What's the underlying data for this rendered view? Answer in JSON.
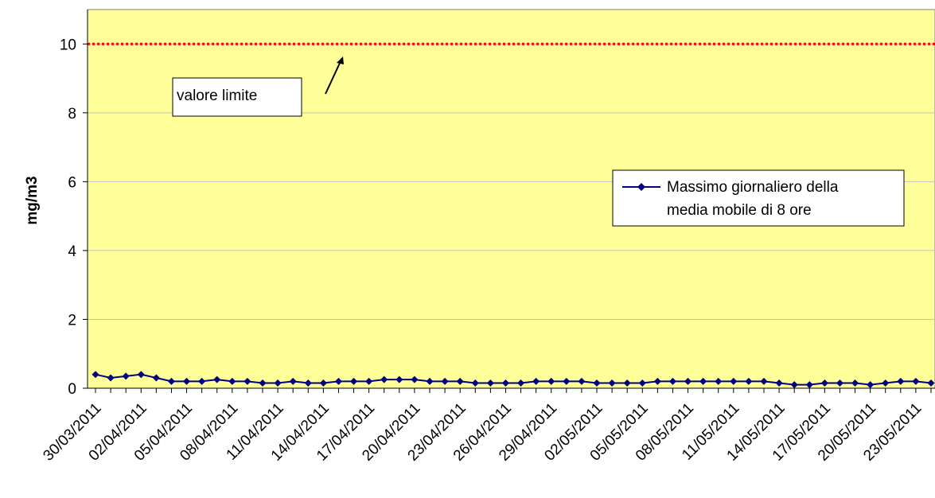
{
  "chart_data": {
    "type": "line",
    "ylabel": "mg/m3",
    "xlabel": "",
    "ylim": [
      0,
      11
    ],
    "yticks": [
      0,
      2,
      4,
      6,
      8,
      10
    ],
    "grid": true,
    "legend_placement": "right",
    "colors": {
      "plot_bg": "#FFFF99",
      "series": "#000080",
      "limit_line": "#FF0000",
      "grid": "#C0C0C0"
    },
    "x": [
      "30/03/2011",
      "31/03/2011",
      "01/04/2011",
      "02/04/2011",
      "03/04/2011",
      "04/04/2011",
      "05/04/2011",
      "06/04/2011",
      "07/04/2011",
      "08/04/2011",
      "09/04/2011",
      "10/04/2011",
      "11/04/2011",
      "12/04/2011",
      "13/04/2011",
      "14/04/2011",
      "15/04/2011",
      "16/04/2011",
      "17/04/2011",
      "18/04/2011",
      "19/04/2011",
      "20/04/2011",
      "21/04/2011",
      "22/04/2011",
      "23/04/2011",
      "24/04/2011",
      "25/04/2011",
      "26/04/2011",
      "27/04/2011",
      "28/04/2011",
      "29/04/2011",
      "30/04/2011",
      "01/05/2011",
      "02/05/2011",
      "03/05/2011",
      "04/05/2011",
      "05/05/2011",
      "06/05/2011",
      "07/05/2011",
      "08/05/2011",
      "09/05/2011",
      "10/05/2011",
      "11/05/2011",
      "12/05/2011",
      "13/05/2011",
      "14/05/2011",
      "15/05/2011",
      "16/05/2011",
      "17/05/2011",
      "18/05/2011",
      "19/05/2011",
      "20/05/2011",
      "21/05/2011",
      "22/05/2011",
      "23/05/2011",
      "24/05/2011"
    ],
    "tick_labels": [
      "30/03/2011",
      "02/04/2011",
      "05/04/2011",
      "08/04/2011",
      "11/04/2011",
      "14/04/2011",
      "17/04/2011",
      "20/04/2011",
      "23/04/2011",
      "26/04/2011",
      "29/04/2011",
      "02/05/2011",
      "05/05/2011",
      "08/05/2011",
      "11/05/2011",
      "14/05/2011",
      "17/05/2011",
      "20/05/2011",
      "23/05/2011"
    ],
    "series": [
      {
        "name": "Massimo giornaliero della media mobile di 8 ore",
        "values": [
          0.4,
          0.3,
          0.35,
          0.4,
          0.3,
          0.2,
          0.2,
          0.2,
          0.25,
          0.2,
          0.2,
          0.15,
          0.15,
          0.2,
          0.15,
          0.15,
          0.2,
          0.2,
          0.2,
          0.25,
          0.25,
          0.25,
          0.2,
          0.2,
          0.2,
          0.15,
          0.15,
          0.15,
          0.15,
          0.2,
          0.2,
          0.2,
          0.2,
          0.15,
          0.15,
          0.15,
          0.15,
          0.2,
          0.2,
          0.2,
          0.2,
          0.2,
          0.2,
          0.2,
          0.2,
          0.15,
          0.1,
          0.1,
          0.15,
          0.15,
          0.15,
          0.1,
          0.15,
          0.2,
          0.2,
          0.15
        ]
      }
    ],
    "limit_value": 10,
    "annotation": "valore limite",
    "legend_label_lines": [
      "Massimo giornaliero della",
      "media mobile di 8 ore"
    ]
  }
}
